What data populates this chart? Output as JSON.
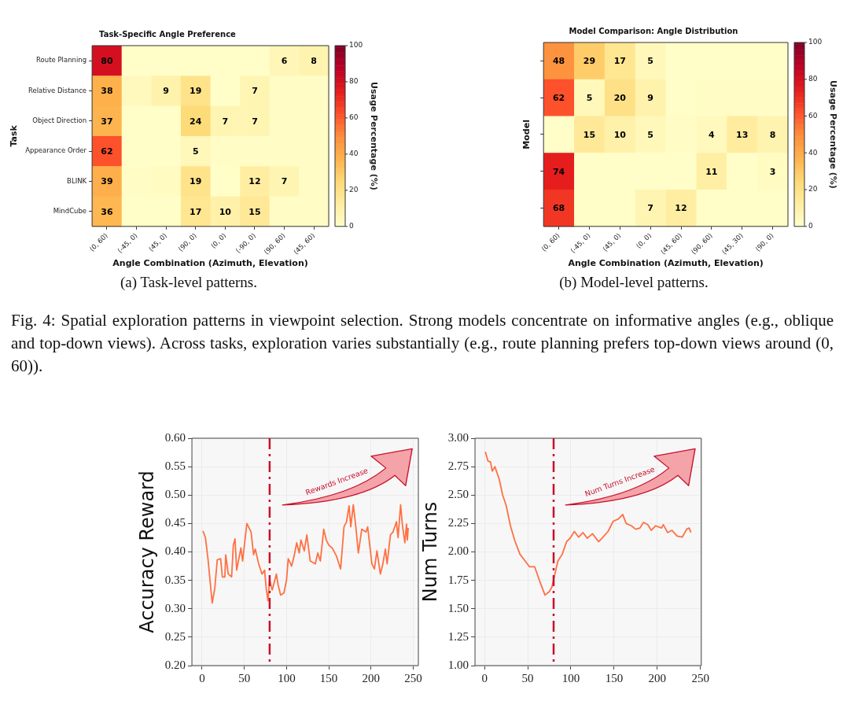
{
  "chart_data": [
    {
      "type": "heatmap",
      "title": "Task-Specific Angle Preference",
      "xlabel": "Angle Combination (Azimuth, Elevation)",
      "ylabel": "Task",
      "clabel": "Usage Percentage (%)",
      "categories": [
        "(0, 60)",
        "(-45, 0)",
        "(45, 0)",
        "(90, 0)",
        "(0, 0)",
        "(-90, 0)",
        "(90, 60)",
        "(45, 60)"
      ],
      "y_categories": [
        "Route Planning",
        "Relative Distance",
        "Object Direction",
        "Appearance Order",
        "BLINK",
        "MindCube"
      ],
      "cells": [
        [
          80,
          1,
          1,
          1,
          1,
          1,
          6,
          8
        ],
        [
          38,
          4,
          9,
          19,
          1,
          7,
          2,
          2
        ],
        [
          37,
          1,
          1,
          24,
          7,
          7,
          2,
          2
        ],
        [
          62,
          1,
          1,
          5,
          2,
          2,
          2,
          2
        ],
        [
          39,
          2,
          3,
          19,
          1,
          12,
          7,
          2
        ],
        [
          36,
          1,
          1,
          17,
          10,
          15,
          2,
          2
        ]
      ],
      "cell_labels": [
        [
          "80",
          null,
          null,
          null,
          null,
          null,
          "6",
          "8"
        ],
        [
          "38",
          null,
          "9",
          "19",
          null,
          "7",
          null,
          null
        ],
        [
          "37",
          null,
          null,
          "24",
          "7",
          "7",
          null,
          null
        ],
        [
          "62",
          null,
          null,
          "5",
          null,
          null,
          null,
          null
        ],
        [
          "39",
          null,
          null,
          "19",
          null,
          "12",
          "7",
          null
        ],
        [
          "36",
          null,
          null,
          "17",
          "10",
          "15",
          null,
          null
        ]
      ],
      "clim": [
        0,
        100
      ],
      "cticks": [
        0,
        20,
        40,
        60,
        80,
        100
      ],
      "annotations": [
        "(a) Task-level patterns."
      ]
    },
    {
      "type": "heatmap",
      "title": "Model Comparison: Angle Distribution",
      "xlabel": "Angle Combination (Azimuth, Elevation)",
      "ylabel": "Model",
      "clabel": "Usage Percentage (%)",
      "categories": [
        "(0, 60)",
        "(-45, 0)",
        "(45, 0)",
        "(0, 0)",
        "(45, 60)",
        "(90, 60)",
        "(45, 30)",
        "(90, 0)"
      ],
      "y_categories": [
        null,
        null,
        null,
        null,
        null
      ],
      "cells": [
        [
          48,
          29,
          17,
          5,
          1,
          1,
          1,
          1
        ],
        [
          62,
          5,
          20,
          9,
          1,
          2,
          2,
          2
        ],
        [
          1,
          15,
          10,
          5,
          2,
          4,
          13,
          8
        ],
        [
          74,
          1,
          1,
          1,
          1,
          11,
          1,
          3
        ],
        [
          68,
          1,
          1,
          7,
          12,
          1,
          1,
          1
        ]
      ],
      "cell_labels": [
        [
          "48",
          "29",
          "17",
          "5",
          null,
          null,
          null,
          null
        ],
        [
          "62",
          "5",
          "20",
          "9",
          null,
          null,
          null,
          null
        ],
        [
          null,
          "15",
          "10",
          "5",
          null,
          "4",
          "13",
          "8"
        ],
        [
          "74",
          null,
          null,
          null,
          null,
          "11",
          null,
          "3"
        ],
        [
          "68",
          null,
          null,
          "7",
          "12",
          null,
          null,
          null
        ]
      ],
      "clim": [
        0,
        100
      ],
      "cticks": [
        0,
        20,
        40,
        60,
        80,
        100
      ],
      "annotations": [
        "(b) Model-level patterns.",
        "Fig. 4: Spatial exploration patterns in viewpoint selection. Strong models concentrate on informative angles (e.g., oblique and top-down views). Across tasks, exploration varies substantially (e.g., route planning prefers top-down views around (0, 60))."
      ]
    },
    {
      "type": "line",
      "ylabel": "Accuracy Reward",
      "color": "#ff7043",
      "marker": "none",
      "grid": true,
      "x": [
        1,
        4,
        7,
        12,
        15,
        18,
        22,
        24,
        27,
        28,
        31,
        35,
        37,
        39,
        41,
        46,
        48,
        53,
        58,
        61,
        63,
        67,
        71,
        74,
        76,
        78,
        80,
        83,
        88,
        90,
        93,
        97,
        100,
        102,
        106,
        109,
        112,
        115,
        117,
        121,
        124,
        128,
        134,
        137,
        140,
        144,
        147,
        150,
        154,
        159,
        164,
        168,
        171,
        174,
        176,
        179,
        182,
        185,
        189,
        194,
        196,
        201,
        204,
        207,
        211,
        214,
        217,
        219,
        223,
        226,
        230,
        232,
        235,
        237,
        240,
        242,
        243,
        244
      ],
      "values": [
        0.437,
        0.425,
        0.388,
        0.31,
        0.335,
        0.386,
        0.388,
        0.356,
        0.356,
        0.395,
        0.361,
        0.356,
        0.412,
        0.423,
        0.368,
        0.407,
        0.384,
        0.45,
        0.435,
        0.395,
        0.405,
        0.379,
        0.361,
        0.368,
        0.335,
        0.314,
        0.351,
        0.333,
        0.361,
        0.342,
        0.324,
        0.328,
        0.351,
        0.388,
        0.375,
        0.393,
        0.416,
        0.398,
        0.421,
        0.402,
        0.43,
        0.384,
        0.379,
        0.398,
        0.384,
        0.44,
        0.421,
        0.412,
        0.407,
        0.393,
        0.37,
        0.444,
        0.453,
        0.481,
        0.444,
        0.483,
        0.444,
        0.398,
        0.44,
        0.435,
        0.444,
        0.379,
        0.37,
        0.402,
        0.361,
        0.379,
        0.405,
        0.379,
        0.43,
        0.435,
        0.453,
        0.425,
        0.483,
        0.449,
        0.416,
        0.449,
        0.421,
        0.442
      ],
      "xlim": [
        -12,
        256
      ],
      "xticks": [
        0,
        50,
        100,
        150,
        200,
        250
      ],
      "ylim": [
        0.2,
        0.6
      ],
      "yticks": [
        {
          "value": 0.2,
          "label": "0.20"
        },
        {
          "value": 0.25,
          "label": "0.25"
        },
        {
          "value": 0.3,
          "label": "0.30"
        },
        {
          "value": 0.35,
          "label": "0.35"
        },
        {
          "value": 0.4,
          "label": "0.40"
        },
        {
          "value": 0.45,
          "label": "0.45"
        },
        {
          "value": 0.5,
          "label": "0.50"
        },
        {
          "value": 0.55,
          "label": "0.55"
        },
        {
          "value": 0.6,
          "label": "0.60"
        }
      ],
      "ref_lines": [
        {
          "axis": "x",
          "value": 80,
          "color": "#c8102e",
          "line_style": "dashdot"
        }
      ],
      "annotations": [
        "Rewards Increase"
      ]
    },
    {
      "type": "line",
      "ylabel": "Num Turns",
      "color": "#ff7043",
      "marker": "none",
      "grid": true,
      "x": [
        1,
        4,
        7,
        9,
        12,
        17,
        21,
        25,
        30,
        35,
        41,
        47,
        52,
        58,
        64,
        70,
        75,
        78,
        81,
        85,
        90,
        95,
        99,
        104,
        109,
        114,
        119,
        125,
        132,
        136,
        143,
        149,
        155,
        160,
        164,
        170,
        175,
        180,
        184,
        189,
        193,
        198,
        205,
        207,
        212,
        217,
        223,
        229,
        234,
        237,
        239
      ],
      "values": [
        2.88,
        2.8,
        2.79,
        2.71,
        2.75,
        2.64,
        2.5,
        2.41,
        2.23,
        2.1,
        1.98,
        1.92,
        1.87,
        1.87,
        1.74,
        1.62,
        1.65,
        1.69,
        1.79,
        1.92,
        1.98,
        2.09,
        2.12,
        2.18,
        2.13,
        2.17,
        2.12,
        2.16,
        2.09,
        2.12,
        2.18,
        2.27,
        2.29,
        2.33,
        2.25,
        2.23,
        2.2,
        2.21,
        2.26,
        2.24,
        2.19,
        2.23,
        2.21,
        2.24,
        2.17,
        2.19,
        2.14,
        2.13,
        2.2,
        2.21,
        2.17
      ],
      "xlim": [
        -11,
        251
      ],
      "xticks": [
        0,
        50,
        100,
        150,
        200,
        250
      ],
      "ylim": [
        1,
        3
      ],
      "yticks": [
        {
          "value": 1,
          "label": "1.00"
        },
        {
          "value": 1.25,
          "label": "1.25"
        },
        {
          "value": 1.5,
          "label": "1.50"
        },
        {
          "value": 1.75,
          "label": "1.75"
        },
        {
          "value": 2,
          "label": "2.00"
        },
        {
          "value": 2.25,
          "label": "2.25"
        },
        {
          "value": 2.5,
          "label": "2.50"
        },
        {
          "value": 2.75,
          "label": "2.75"
        },
        {
          "value": 3,
          "label": "3.00"
        }
      ],
      "ref_lines": [
        {
          "axis": "x",
          "value": 80,
          "color": "#c8102e",
          "line_style": "dashdot"
        }
      ],
      "annotations": [
        "Num Turns Increase"
      ]
    }
  ]
}
